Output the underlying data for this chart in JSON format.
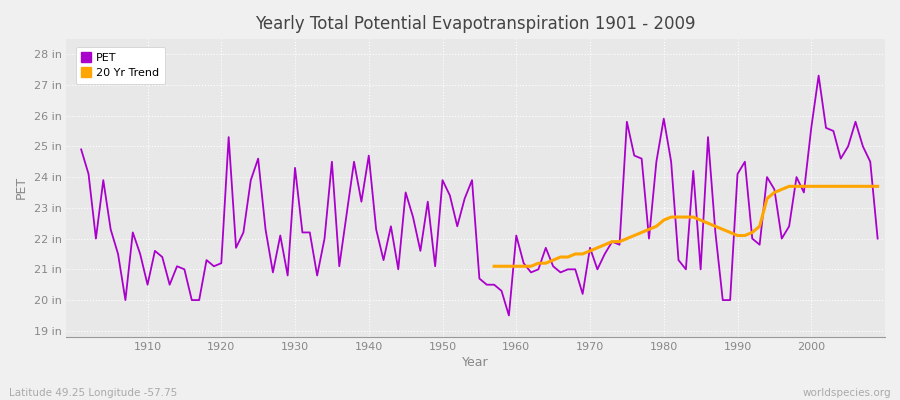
{
  "title": "Yearly Total Potential Evapotranspiration 1901 - 2009",
  "xlabel": "Year",
  "ylabel": "PET",
  "footnote_left": "Latitude 49.25 Longitude -57.75",
  "footnote_right": "worldspecies.org",
  "pet_color": "#aa00cc",
  "trend_color": "#FFA500",
  "bg_color": "#f0f0f0",
  "plot_bg_color": "#e8e8e8",
  "ylim": [
    18.8,
    28.5
  ],
  "yticks": [
    19,
    20,
    21,
    22,
    23,
    24,
    25,
    26,
    27,
    28
  ],
  "ytick_labels": [
    "19 in",
    "20 in",
    "21 in",
    "22 in",
    "23 in",
    "24 in",
    "25 in",
    "26 in",
    "27 in",
    "28 in"
  ],
  "xlim": [
    1899,
    2010
  ],
  "xticks": [
    1910,
    1920,
    1930,
    1940,
    1950,
    1960,
    1970,
    1980,
    1990,
    2000
  ],
  "years": [
    1901,
    1902,
    1903,
    1904,
    1905,
    1906,
    1907,
    1908,
    1909,
    1910,
    1911,
    1912,
    1913,
    1914,
    1915,
    1916,
    1917,
    1918,
    1919,
    1920,
    1921,
    1922,
    1923,
    1924,
    1925,
    1926,
    1927,
    1928,
    1929,
    1930,
    1931,
    1932,
    1933,
    1934,
    1935,
    1936,
    1937,
    1938,
    1939,
    1940,
    1941,
    1942,
    1943,
    1944,
    1945,
    1946,
    1947,
    1948,
    1949,
    1950,
    1951,
    1952,
    1953,
    1954,
    1955,
    1956,
    1957,
    1958,
    1959,
    1960,
    1961,
    1962,
    1963,
    1964,
    1965,
    1966,
    1967,
    1968,
    1969,
    1970,
    1971,
    1972,
    1973,
    1974,
    1975,
    1976,
    1977,
    1978,
    1979,
    1980,
    1981,
    1982,
    1983,
    1984,
    1985,
    1986,
    1987,
    1988,
    1989,
    1990,
    1991,
    1992,
    1993,
    1994,
    1995,
    1996,
    1997,
    1998,
    1999,
    2000,
    2001,
    2002,
    2003,
    2004,
    2005,
    2006,
    2007,
    2008,
    2009
  ],
  "pet_values": [
    24.9,
    24.1,
    22.0,
    23.9,
    22.3,
    21.5,
    20.0,
    22.2,
    21.5,
    20.5,
    21.6,
    21.4,
    20.5,
    21.1,
    21.0,
    20.0,
    20.0,
    21.3,
    21.1,
    21.2,
    25.3,
    21.7,
    22.2,
    23.9,
    24.6,
    22.3,
    20.9,
    22.1,
    20.8,
    24.3,
    22.2,
    22.2,
    20.8,
    22.0,
    24.5,
    21.1,
    22.8,
    24.5,
    23.2,
    24.7,
    22.3,
    21.3,
    22.4,
    21.0,
    23.5,
    22.7,
    21.6,
    23.2,
    21.1,
    23.9,
    23.4,
    22.4,
    23.3,
    23.9,
    20.7,
    20.5,
    20.5,
    20.3,
    19.5,
    22.1,
    21.2,
    20.9,
    21.0,
    21.7,
    21.1,
    20.9,
    21.0,
    21.0,
    20.2,
    21.7,
    21.0,
    21.5,
    21.9,
    21.8,
    25.8,
    24.7,
    24.6,
    22.0,
    24.5,
    25.9,
    24.5,
    21.3,
    21.0,
    24.2,
    21.0,
    25.3,
    22.2,
    20.0,
    20.0,
    24.1,
    24.5,
    22.0,
    21.8,
    24.0,
    23.6,
    22.0,
    22.4,
    24.0,
    23.5,
    25.6,
    27.3,
    25.6,
    25.5,
    24.6,
    25.0,
    25.8,
    25.0,
    24.5,
    22.0
  ],
  "trend_years": [
    1957,
    1958,
    1959,
    1960,
    1961,
    1962,
    1963,
    1964,
    1965,
    1966,
    1967,
    1968,
    1969,
    1970,
    1971,
    1972,
    1973,
    1974,
    1975,
    1976,
    1977,
    1978,
    1979,
    1980,
    1981,
    1982,
    1983,
    1984,
    1985,
    1986,
    1987,
    1988,
    1989,
    1990,
    1991,
    1992,
    1993,
    1994,
    1995,
    1996,
    1997,
    1998,
    1999,
    2000,
    2001,
    2002,
    2003,
    2004,
    2005,
    2006,
    2007,
    2008,
    2009
  ],
  "trend_values": [
    21.1,
    21.1,
    21.1,
    21.1,
    21.1,
    21.1,
    21.2,
    21.2,
    21.3,
    21.4,
    21.4,
    21.5,
    21.5,
    21.6,
    21.7,
    21.8,
    21.9,
    21.9,
    22.0,
    22.1,
    22.2,
    22.3,
    22.4,
    22.6,
    22.7,
    22.7,
    22.7,
    22.7,
    22.6,
    22.5,
    22.4,
    22.3,
    22.2,
    22.1,
    22.1,
    22.2,
    22.4,
    23.3,
    23.5,
    23.6,
    23.7,
    23.7,
    23.7,
    23.7,
    23.7,
    23.7,
    23.7,
    23.7,
    23.7,
    23.7,
    23.7,
    23.7,
    23.7
  ]
}
